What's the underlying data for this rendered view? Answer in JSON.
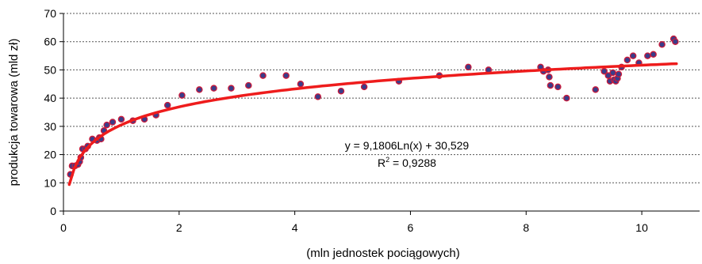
{
  "chart_data": {
    "type": "scatter",
    "xlabel": "(mln jednostek pociągowych)",
    "ylabel": "produkcja towarowa (mld zł)",
    "xlim": [
      0,
      11
    ],
    "ylim": [
      0,
      70
    ],
    "xticks": [
      "0",
      "2",
      "4",
      "6",
      "8",
      "10"
    ],
    "yticks": [
      "0",
      "10",
      "20",
      "30",
      "40",
      "50",
      "60",
      "70"
    ],
    "grid": "horizontal-dashed",
    "legend": "none",
    "trendline": {
      "type": "logarithmic",
      "a": 9.1806,
      "b": 30.529,
      "x_range": [
        0.1,
        10.6
      ],
      "color": "#ee1c1c",
      "equation_text": "y = 9,1806Ln(x) + 30,529",
      "r2_prefix": "R",
      "r2_sup": "2",
      "r2_suffix": " = 0,9288"
    },
    "marker": {
      "fill": "#3a3d8a",
      "stroke": "#cc1a3a"
    },
    "points": [
      [
        0.12,
        13.0
      ],
      [
        0.15,
        16.0
      ],
      [
        0.2,
        16.0
      ],
      [
        0.25,
        16.5
      ],
      [
        0.28,
        17.5
      ],
      [
        0.3,
        19.0
      ],
      [
        0.33,
        22.0
      ],
      [
        0.38,
        22.0
      ],
      [
        0.42,
        23.0
      ],
      [
        0.5,
        25.5
      ],
      [
        0.58,
        25.0
      ],
      [
        0.62,
        26.0
      ],
      [
        0.65,
        25.5
      ],
      [
        0.7,
        28.5
      ],
      [
        0.75,
        30.5
      ],
      [
        0.85,
        31.5
      ],
      [
        1.0,
        32.5
      ],
      [
        1.2,
        32.0
      ],
      [
        1.4,
        32.5
      ],
      [
        1.6,
        34.0
      ],
      [
        1.8,
        37.5
      ],
      [
        2.05,
        41.0
      ],
      [
        2.35,
        43.0
      ],
      [
        2.6,
        43.5
      ],
      [
        2.9,
        43.5
      ],
      [
        3.2,
        44.5
      ],
      [
        3.45,
        48.0
      ],
      [
        3.85,
        48.0
      ],
      [
        4.1,
        45.0
      ],
      [
        4.4,
        40.5
      ],
      [
        4.8,
        42.5
      ],
      [
        5.2,
        44.0
      ],
      [
        5.8,
        46.0
      ],
      [
        6.5,
        48.0
      ],
      [
        7.0,
        51.0
      ],
      [
        7.35,
        50.0
      ],
      [
        8.25,
        51.0
      ],
      [
        8.3,
        49.5
      ],
      [
        8.38,
        50.0
      ],
      [
        8.4,
        47.5
      ],
      [
        8.42,
        44.5
      ],
      [
        8.55,
        44.0
      ],
      [
        8.7,
        40.0
      ],
      [
        9.2,
        43.0
      ],
      [
        9.35,
        49.5
      ],
      [
        9.42,
        48.0
      ],
      [
        9.45,
        46.0
      ],
      [
        9.5,
        49.0
      ],
      [
        9.52,
        46.5
      ],
      [
        9.55,
        46.0
      ],
      [
        9.58,
        47.0
      ],
      [
        9.6,
        48.5
      ],
      [
        9.65,
        51.0
      ],
      [
        9.75,
        53.5
      ],
      [
        9.85,
        55.0
      ],
      [
        9.95,
        52.5
      ],
      [
        10.1,
        55.0
      ],
      [
        10.2,
        55.5
      ],
      [
        10.35,
        59.0
      ],
      [
        10.55,
        61.0
      ],
      [
        10.58,
        60.0
      ]
    ]
  }
}
